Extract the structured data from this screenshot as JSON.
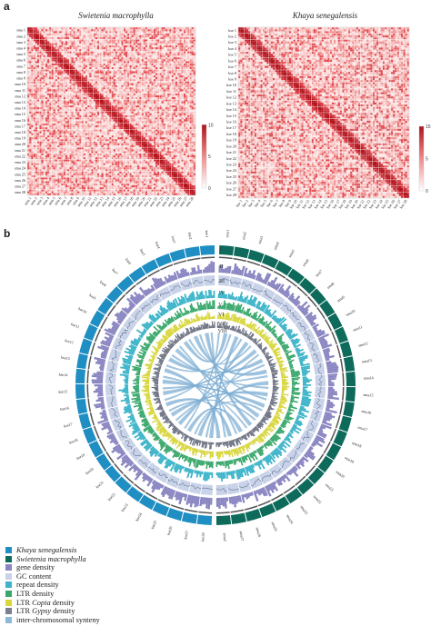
{
  "panel_a": {
    "label": "a",
    "left_heatmap": {
      "title": "Swietenia macrophylla",
      "chromosomes": [
        "sma 1",
        "sma 2",
        "sma 3",
        "sma 4",
        "sma 5",
        "sma 6",
        "sma 7",
        "sma 8",
        "sma 9",
        "sma 10",
        "sma 11",
        "sma 12",
        "sma 13",
        "sma 14",
        "sma 15",
        "sma 16",
        "sma 17",
        "sma 18",
        "sma 19",
        "sma 20",
        "sma 21",
        "sma 22",
        "sma 23",
        "sma 24",
        "sma 25",
        "sma 26",
        "sma 27",
        "sma 28"
      ],
      "colorbar_ticks": [
        "10",
        "5",
        "0"
      ]
    },
    "right_heatmap": {
      "title": "Khaya senegalensis",
      "chromosomes": [
        "kse 1",
        "kse 2",
        "kse 3",
        "kse 4",
        "kse 5",
        "kse 6",
        "kse 7",
        "kse 8",
        "kse 9",
        "kse 10",
        "kse 11",
        "kse 12",
        "kse 13",
        "kse 14",
        "kse 15",
        "kse 16",
        "kse 17",
        "kse 18",
        "kse 19",
        "kse 20",
        "kse 21",
        "kse 22",
        "kse 23",
        "kse 24",
        "kse 25",
        "kse 26",
        "kse 27",
        "kse 28"
      ],
      "colorbar_ticks": [
        "15",
        "5",
        "0"
      ]
    }
  },
  "panel_b": {
    "label": "b",
    "ring_labels": [
      "I",
      "II",
      "III",
      "IV",
      "V",
      "VI",
      "VII",
      "VIII"
    ],
    "kse_chromosomes": [
      "kse1",
      "kse2",
      "kse3",
      "kse4",
      "kse5",
      "kse6",
      "kse7",
      "kse8",
      "kse9",
      "kse10",
      "kse11",
      "kse12",
      "kse13",
      "kse14",
      "kse15",
      "kse16",
      "kse17",
      "kse18",
      "kse19",
      "kse20",
      "kse21",
      "kse22",
      "kse23",
      "kse24",
      "kse25",
      "kse26",
      "kse27",
      "kse28"
    ],
    "sma_chromosomes": [
      "sma1",
      "sma2",
      "sma3",
      "sma4",
      "sma5",
      "sma6",
      "sma7",
      "sma8",
      "sma9",
      "sma10",
      "sma11",
      "sma12",
      "sma13",
      "sma14",
      "sma15",
      "sma16",
      "sma17",
      "sma18",
      "sma19",
      "sma20",
      "sma21",
      "sma22",
      "sma23",
      "sma24",
      "sma25",
      "sma26",
      "sma27",
      "sma28"
    ],
    "colors": {
      "kse": "#1f8ec3",
      "sma": "#0e6b5c",
      "gene": "#8a86c2",
      "gc": "#c8d2e8",
      "repeat": "#3db4c9",
      "ltr": "#3aa86c",
      "copia": "#d8d63c",
      "gypsy": "#7b7f8f",
      "synteny": "#8cb8da"
    },
    "legend": [
      {
        "label": "Khaya senegalensis",
        "italic": true,
        "color": "#1f8ec3"
      },
      {
        "label": "Swietenia macrophylla",
        "italic": true,
        "color": "#0e6b5c"
      },
      {
        "label": "gene density",
        "italic": false,
        "color": "#8a86c2"
      },
      {
        "label": "GC content",
        "italic": false,
        "color": "#c8d2e8"
      },
      {
        "label": "repeat density",
        "italic": false,
        "color": "#3db4c9"
      },
      {
        "label": "LTR density",
        "italic": false,
        "color": "#3aa86c"
      },
      {
        "label": "LTR Copia density",
        "prefix": "LTR ",
        "italic_part": "Copia",
        "suffix": " density",
        "color": "#d8d63c"
      },
      {
        "label": "LTR Gypsy density",
        "prefix": "LTR ",
        "italic_part": "Gypsy",
        "suffix": " density",
        "color": "#7b7f8f"
      },
      {
        "label": "inter-chromosomal synteny",
        "italic": false,
        "color": "#8cb8da"
      }
    ]
  }
}
